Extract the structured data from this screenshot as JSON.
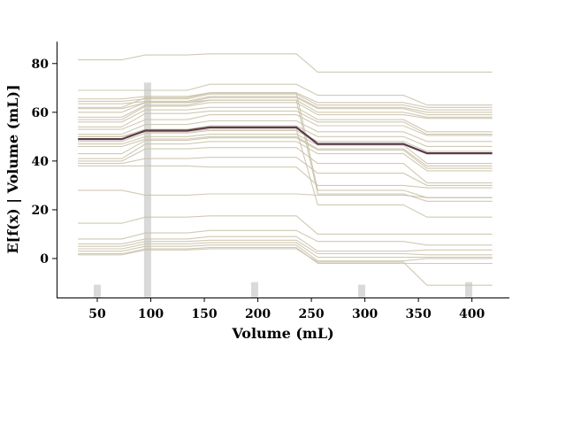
{
  "chart_data": {
    "type": "line",
    "title": "",
    "xlabel": "Volume (mL)",
    "ylabel": "E[f(x) | Volume (mL)]",
    "xlim": [
      12,
      435
    ],
    "ylim": [
      -16,
      89
    ],
    "x_ticks": [
      50,
      100,
      150,
      200,
      250,
      300,
      350,
      400
    ],
    "y_ticks": [
      0,
      20,
      40,
      60,
      80
    ],
    "grid": false,
    "legend": "none",
    "x": [
      32,
      73,
      95,
      134,
      155,
      236,
      256,
      336,
      358,
      419
    ],
    "average_series": {
      "values": [
        49,
        49,
        52.5,
        52.5,
        53.8,
        53.8,
        47,
        47,
        43.2,
        43.2
      ],
      "color": "#5b3a4a"
    },
    "ice_series": [
      [
        81.5,
        81.5,
        83.5,
        83.5,
        84,
        84,
        76.5,
        76.5,
        76.5,
        76.5
      ],
      [
        69,
        69,
        69,
        69,
        71.5,
        71.5,
        67,
        67,
        63,
        63
      ],
      [
        65.5,
        65.5,
        66.5,
        66.5,
        68,
        68,
        64,
        64,
        62,
        62
      ],
      [
        64.5,
        64.5,
        65.5,
        65.5,
        67.5,
        67.5,
        63,
        63,
        61,
        61
      ],
      [
        63.5,
        63.5,
        64.5,
        64.5,
        66.5,
        66.5,
        62,
        62,
        60,
        60
      ],
      [
        61.5,
        61.5,
        64,
        64,
        66,
        66,
        61.5,
        61.5,
        59,
        59
      ],
      [
        58,
        58,
        63,
        63,
        65,
        65,
        60,
        60,
        58,
        58
      ],
      [
        57,
        57,
        62.5,
        62.5,
        64,
        64,
        59,
        59,
        57.5,
        57.5
      ],
      [
        56,
        56,
        61,
        61,
        62,
        62,
        57,
        57,
        52,
        52
      ],
      [
        54,
        54,
        59.5,
        59.5,
        60.5,
        60.5,
        56,
        56,
        51,
        51
      ],
      [
        53,
        53,
        57,
        57,
        59,
        59,
        54.5,
        54.5,
        50.5,
        50.5
      ],
      [
        51,
        51,
        55,
        55,
        56.5,
        56.5,
        52,
        52,
        48,
        48
      ],
      [
        50,
        50,
        53,
        53,
        54.5,
        54.5,
        50,
        50,
        46,
        46
      ],
      [
        48,
        48,
        51.5,
        51.5,
        52.5,
        52.5,
        48,
        48,
        44,
        44
      ],
      [
        47,
        47,
        50,
        50,
        51,
        51,
        46.5,
        46.5,
        39,
        39
      ],
      [
        46,
        46,
        49,
        49,
        50,
        50,
        45,
        45,
        38,
        38
      ],
      [
        43,
        43,
        48.5,
        48.5,
        49.5,
        49.5,
        44.5,
        44.5,
        37,
        37
      ],
      [
        41,
        41,
        47,
        47,
        48,
        48,
        43,
        43,
        36,
        36
      ],
      [
        40,
        40,
        45,
        45,
        45.5,
        45.5,
        39,
        39,
        31,
        31
      ],
      [
        39,
        39,
        41,
        41,
        41.5,
        41.5,
        35,
        35,
        30,
        30
      ],
      [
        38,
        38,
        38,
        38,
        37.5,
        37.5,
        30,
        30,
        29,
        29
      ],
      [
        62,
        62,
        66,
        66,
        68,
        68,
        28,
        28,
        25,
        25
      ],
      [
        60,
        60,
        64,
        64,
        65,
        65,
        26.5,
        26.5,
        23.5,
        23.5
      ],
      [
        50,
        50,
        52,
        52,
        53,
        53,
        22,
        22,
        17,
        17
      ],
      [
        28,
        28,
        26,
        26,
        26.5,
        26.5,
        26,
        26,
        25,
        25
      ],
      [
        14.5,
        14.5,
        17,
        17,
        17.5,
        17.5,
        10,
        10,
        10,
        10
      ],
      [
        8,
        8,
        10.5,
        10.5,
        11.5,
        11.5,
        7,
        7,
        5.5,
        5.5
      ],
      [
        6,
        6,
        8,
        8,
        9,
        9,
        3,
        3,
        3.5,
        3.5
      ],
      [
        5,
        5,
        7,
        7,
        7.5,
        7.5,
        2,
        2,
        1.5,
        1.5
      ],
      [
        4,
        4,
        6,
        6,
        6.5,
        6.5,
        0.5,
        0.5,
        0.5,
        0.5
      ],
      [
        3,
        3,
        5,
        5,
        5.5,
        5.5,
        -1,
        -1,
        0,
        0
      ],
      [
        2,
        2,
        4,
        4,
        4.5,
        4.5,
        -2,
        -2,
        -2,
        -2
      ],
      [
        1.5,
        1.5,
        3.5,
        3.5,
        4,
        4,
        -1.5,
        -1.5,
        -11,
        -11
      ]
    ],
    "ice_color": "#c8bfa6",
    "histogram": {
      "color": "#d9d9d9",
      "bars": [
        {
          "x": 50,
          "height": 5
        },
        {
          "x": 97,
          "height": 84
        },
        {
          "x": 197,
          "height": 6
        },
        {
          "x": 297,
          "height": 5
        },
        {
          "x": 397,
          "height": 6
        }
      ]
    }
  }
}
